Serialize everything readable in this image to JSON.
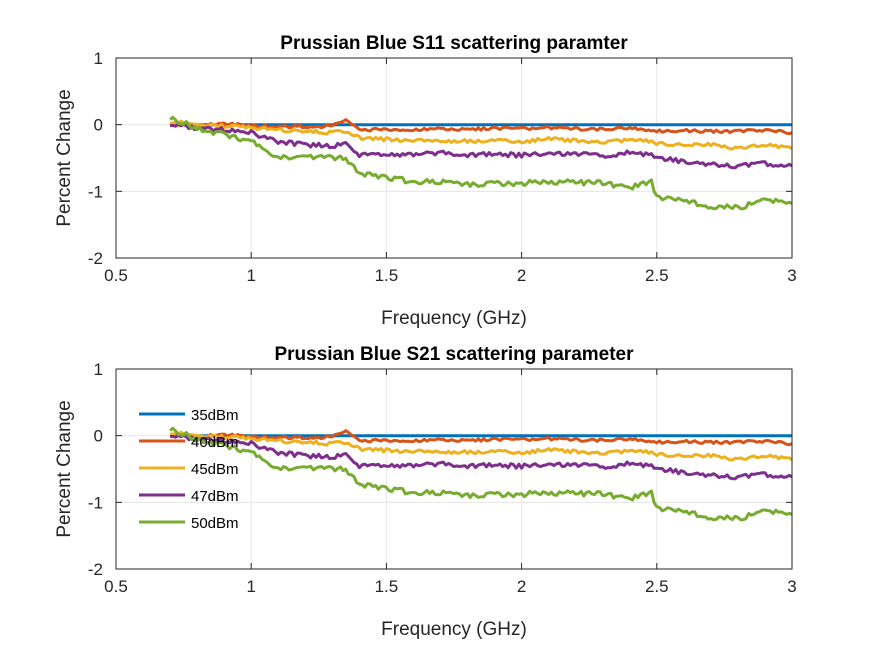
{
  "chart_data": [
    {
      "type": "line",
      "title": "Prussian Blue S11 scattering paramter",
      "xlabel": "Frequency (GHz)",
      "ylabel": "Percent Change",
      "xlim": [
        0.5,
        3
      ],
      "ylim": [
        -2,
        1
      ],
      "xticks": [
        "0.5",
        "1",
        "1.5",
        "2",
        "2.5",
        "3"
      ],
      "yticks": [
        "1",
        "0",
        "-1",
        "-2"
      ],
      "grid": true,
      "legend": false,
      "x": [
        0.7,
        0.8,
        0.9,
        1.0,
        1.1,
        1.2,
        1.3,
        1.35,
        1.4,
        1.5,
        1.6,
        1.7,
        1.8,
        1.9,
        2.0,
        2.1,
        2.2,
        2.3,
        2.4,
        2.48,
        2.5,
        2.6,
        2.7,
        2.8,
        2.9,
        3.0
      ],
      "series": [
        {
          "name": "35dBm",
          "color": "#0072BD",
          "values": [
            0,
            0,
            0,
            0,
            0,
            0,
            0,
            0,
            0,
            0,
            0,
            0,
            0,
            0,
            0,
            0,
            0,
            0,
            0,
            0,
            0,
            0,
            0,
            0,
            0,
            0
          ]
        },
        {
          "name": "40dBm",
          "color": "#D95319",
          "values": [
            0.0,
            -0.02,
            0.02,
            -0.02,
            -0.03,
            -0.03,
            -0.02,
            0.07,
            -0.08,
            -0.07,
            -0.08,
            -0.06,
            -0.08,
            -0.05,
            -0.06,
            -0.05,
            -0.06,
            -0.07,
            -0.05,
            -0.08,
            -0.1,
            -0.09,
            -0.1,
            -0.1,
            -0.08,
            -0.12
          ]
        },
        {
          "name": "45dBm",
          "color": "#EDB120",
          "values": [
            0.05,
            0.0,
            -0.02,
            -0.05,
            -0.08,
            -0.1,
            -0.12,
            -0.1,
            -0.2,
            -0.22,
            -0.24,
            -0.24,
            -0.25,
            -0.24,
            -0.25,
            -0.22,
            -0.24,
            -0.26,
            -0.24,
            -0.25,
            -0.28,
            -0.3,
            -0.3,
            -0.35,
            -0.3,
            -0.36
          ]
        },
        {
          "name": "47dBm",
          "color": "#7E2F8E",
          "values": [
            0.0,
            -0.05,
            -0.08,
            -0.12,
            -0.25,
            -0.3,
            -0.32,
            -0.28,
            -0.45,
            -0.45,
            -0.45,
            -0.42,
            -0.45,
            -0.44,
            -0.46,
            -0.42,
            -0.44,
            -0.47,
            -0.42,
            -0.45,
            -0.5,
            -0.55,
            -0.6,
            -0.62,
            -0.58,
            -0.62
          ]
        },
        {
          "name": "50dBm",
          "color": "#77AC30",
          "values": [
            0.1,
            -0.05,
            -0.15,
            -0.25,
            -0.5,
            -0.48,
            -0.5,
            -0.5,
            -0.72,
            -0.8,
            -0.85,
            -0.86,
            -0.9,
            -0.88,
            -0.88,
            -0.85,
            -0.87,
            -0.88,
            -0.95,
            -0.85,
            -1.1,
            -1.15,
            -1.22,
            -1.25,
            -1.12,
            -1.18
          ]
        }
      ]
    },
    {
      "type": "line",
      "title": "Prussian Blue S21 scattering parameter",
      "xlabel": "Frequency (GHz)",
      "ylabel": "Percent Change",
      "xlim": [
        0.5,
        3
      ],
      "ylim": [
        -2,
        1
      ],
      "xticks": [
        "0.5",
        "1",
        "1.5",
        "2",
        "2.5",
        "3"
      ],
      "yticks": [
        "1",
        "0",
        "-1",
        "-2"
      ],
      "grid": true,
      "legend": true,
      "legend_position": "left",
      "x": [
        0.7,
        0.8,
        0.9,
        1.0,
        1.1,
        1.2,
        1.3,
        1.35,
        1.4,
        1.5,
        1.6,
        1.7,
        1.8,
        1.9,
        2.0,
        2.1,
        2.2,
        2.3,
        2.4,
        2.48,
        2.5,
        2.6,
        2.7,
        2.8,
        2.9,
        3.0
      ],
      "series": [
        {
          "name": "35dBm",
          "color": "#0072BD",
          "values": [
            0,
            0,
            0,
            0,
            0,
            0,
            0,
            0,
            0,
            0,
            0,
            0,
            0,
            0,
            0,
            0,
            0,
            0,
            0,
            0,
            0,
            0,
            0,
            0,
            0,
            0
          ]
        },
        {
          "name": "40dBm",
          "color": "#D95319",
          "values": [
            0.0,
            -0.02,
            0.02,
            -0.02,
            -0.03,
            -0.03,
            -0.02,
            0.07,
            -0.08,
            -0.07,
            -0.08,
            -0.06,
            -0.08,
            -0.05,
            -0.06,
            -0.05,
            -0.06,
            -0.07,
            -0.05,
            -0.08,
            -0.1,
            -0.09,
            -0.1,
            -0.1,
            -0.08,
            -0.12
          ]
        },
        {
          "name": "45dBm",
          "color": "#EDB120",
          "values": [
            0.05,
            0.0,
            -0.02,
            -0.05,
            -0.08,
            -0.1,
            -0.12,
            -0.1,
            -0.2,
            -0.22,
            -0.24,
            -0.24,
            -0.25,
            -0.24,
            -0.25,
            -0.22,
            -0.24,
            -0.26,
            -0.24,
            -0.25,
            -0.28,
            -0.3,
            -0.3,
            -0.35,
            -0.3,
            -0.36
          ]
        },
        {
          "name": "47dBm",
          "color": "#7E2F8E",
          "values": [
            0.0,
            -0.05,
            -0.08,
            -0.12,
            -0.25,
            -0.3,
            -0.32,
            -0.28,
            -0.45,
            -0.45,
            -0.45,
            -0.42,
            -0.45,
            -0.44,
            -0.46,
            -0.42,
            -0.44,
            -0.47,
            -0.42,
            -0.45,
            -0.5,
            -0.55,
            -0.6,
            -0.62,
            -0.58,
            -0.62
          ]
        },
        {
          "name": "50dBm",
          "color": "#77AC30",
          "values": [
            0.1,
            -0.05,
            -0.15,
            -0.25,
            -0.5,
            -0.48,
            -0.5,
            -0.5,
            -0.72,
            -0.8,
            -0.85,
            -0.86,
            -0.9,
            -0.88,
            -0.88,
            -0.85,
            -0.87,
            -0.88,
            -0.95,
            -0.85,
            -1.1,
            -1.15,
            -1.22,
            -1.25,
            -1.12,
            -1.18
          ]
        }
      ]
    }
  ]
}
